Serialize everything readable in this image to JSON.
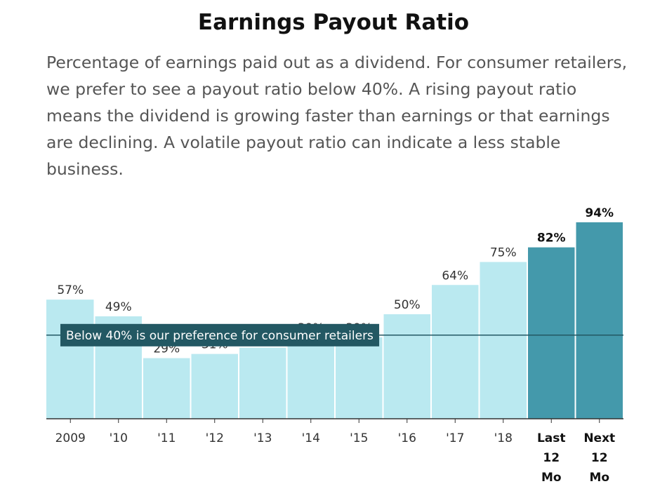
{
  "chart_data": {
    "type": "bar",
    "title": "Earnings Payout Ratio",
    "subtitle": "Percentage of earnings paid out as a dividend. For consumer retailers, we prefer to see a payout ratio below 40%. A rising payout ratio means the dividend is growing faster than earnings or that earnings are declining. A volatile payout ratio can indicate a less stable business.",
    "categories": [
      "2009",
      "'10",
      "'11",
      "'12",
      "'13",
      "'14",
      "'15",
      "'16",
      "'17",
      "'18",
      "Last 12 Mo",
      "Next 12 Mo"
    ],
    "category_lines": [
      [
        "2009"
      ],
      [
        "'10"
      ],
      [
        "'11"
      ],
      [
        "'12"
      ],
      [
        "'13"
      ],
      [
        "'14"
      ],
      [
        "'15"
      ],
      [
        "'16"
      ],
      [
        "'17"
      ],
      [
        "'18"
      ],
      [
        "Last",
        "12",
        "Mo"
      ],
      [
        "Next",
        "12",
        "Mo"
      ]
    ],
    "values": [
      57,
      49,
      29,
      31,
      34,
      39,
      39,
      50,
      64,
      75,
      82,
      94
    ],
    "value_labels": [
      "57%",
      "49%",
      "29%",
      "31%",
      "",
      "39%",
      "39%",
      "50%",
      "64%",
      "75%",
      "82%",
      "94%"
    ],
    "highlighted": [
      false,
      false,
      false,
      false,
      false,
      false,
      false,
      false,
      false,
      false,
      true,
      true
    ],
    "ylim": [
      0,
      100
    ],
    "xlabel": "",
    "ylabel": "",
    "grid": false,
    "reference_line": {
      "value": 40,
      "label": "Below 40% is our preference for consumer retailers"
    },
    "colors": {
      "bar": "#bae9f0",
      "bar_highlight": "#4499ab",
      "reference_line": "#235863",
      "reference_label_bg": "#235863",
      "reference_label_text": "#ffffff",
      "axis": "#333333",
      "label_text": "#333333"
    }
  }
}
